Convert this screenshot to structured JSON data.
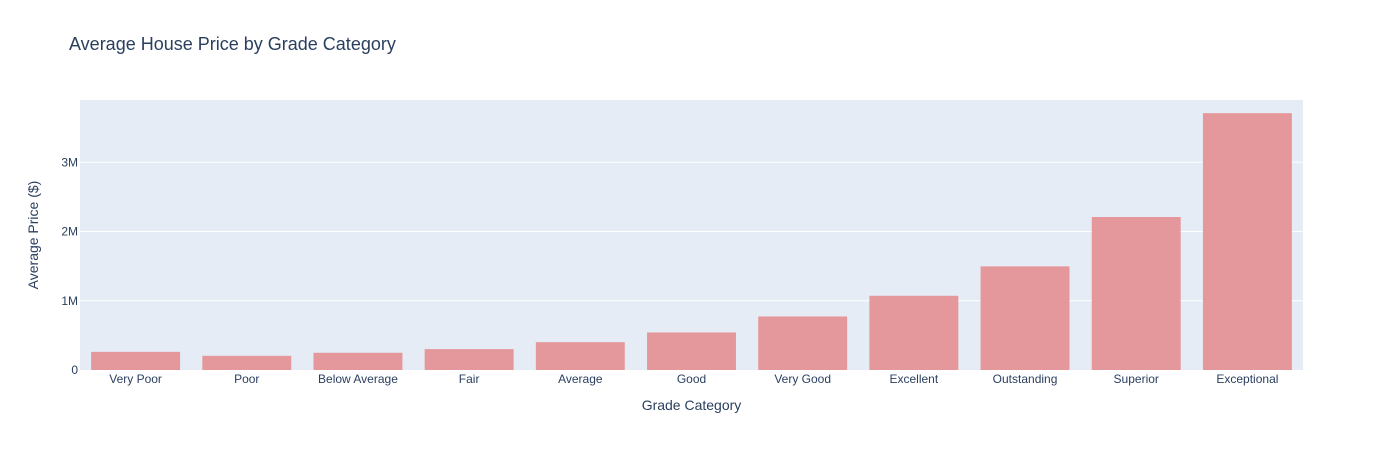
{
  "chart_data": {
    "type": "bar",
    "title": "Average House Price by Grade Category",
    "xlabel": "Grade Category",
    "ylabel": "Average Price ($)",
    "categories": [
      "Very Poor",
      "Poor",
      "Below Average",
      "Fair",
      "Average",
      "Good",
      "Very Good",
      "Excellent",
      "Outstanding",
      "Superior",
      "Exceptional"
    ],
    "values": [
      262000,
      205000,
      249000,
      302000,
      402000,
      542000,
      773000,
      1072000,
      1497000,
      2210000,
      3710000
    ],
    "ylim": [
      0,
      3900000
    ],
    "yticks": [
      {
        "value": 0,
        "label": "0"
      },
      {
        "value": 1000000,
        "label": "1M"
      },
      {
        "value": 2000000,
        "label": "2M"
      },
      {
        "value": 3000000,
        "label": "3M"
      }
    ],
    "grid": true,
    "colors": {
      "bar": "#e5989b",
      "plot_bg": "#e5ecf6",
      "text": "#2a3f5f"
    }
  }
}
